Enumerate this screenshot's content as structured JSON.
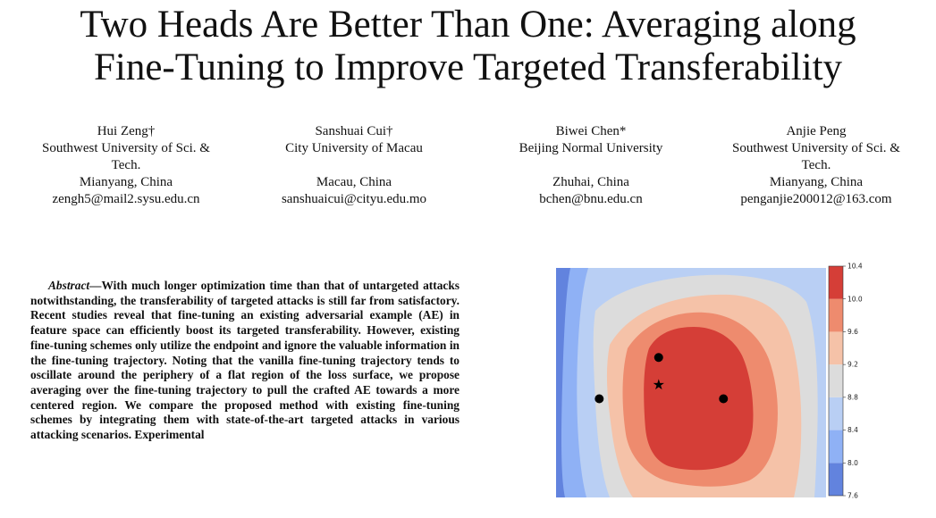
{
  "paper": {
    "title_lines": [
      "Two Heads Are Better Than One: Averaging along",
      "Fine-Tuning to Improve Targeted Transferability"
    ],
    "authors": [
      {
        "name": "Hui Zeng†",
        "affiliation_lines": [
          "Southwest University of Sci. &",
          "Tech."
        ],
        "city": "Mianyang, China",
        "email": "zengh5@mail2.sysu.edu.cn"
      },
      {
        "name": "Sanshuai Cui†",
        "affiliation_lines": [
          "City University of Macau"
        ],
        "city": "Macau, China",
        "email": "sanshuaicui@cityu.edu.mo"
      },
      {
        "name": "Biwei Chen*",
        "affiliation_lines": [
          "Beijing Normal University"
        ],
        "city": "Zhuhai, China",
        "email": "bchen@bnu.edu.cn"
      },
      {
        "name": "Anjie Peng",
        "affiliation_lines": [
          "Southwest University of Sci. &",
          "Tech."
        ],
        "city": "Mianyang, China",
        "email": "penganjie200012@163.com"
      }
    ],
    "abstract": {
      "lead": "Abstract—",
      "text": "With much longer optimization time than that of untargeted attacks notwithstanding, the transferability of targeted attacks is still far from satisfactory. Recent studies reveal that fine-tuning an existing adversarial example (AE) in feature space can efficiently boost its targeted transferability. However, existing fine-tuning schemes only utilize the endpoint and ignore the valuable information in the fine-tuning trajectory. Noting that the vanilla fine-tuning trajectory tends to oscillate around the periphery of a flat region of the loss surface, we propose averaging over the fine-tuning trajectory to pull the crafted AE towards a more centered region. We compare the proposed method with existing fine-tuning schemes by integrating them with state-of-the-art targeted attacks in various attacking scenarios. Experimental"
    }
  },
  "chart_data": {
    "type": "contour",
    "title": "",
    "xlabel": "",
    "ylabel": "",
    "colorbar": {
      "ticks": [
        10.4,
        10.0,
        9.6,
        9.2,
        8.8,
        8.4,
        8.0,
        7.6
      ],
      "tick_labels": [
        "10.4",
        "10.0",
        "9.6",
        "9.2",
        "8.8",
        "8.4",
        "8.0",
        "7.6"
      ],
      "range": [
        7.6,
        10.4
      ],
      "levels": [
        {
          "from": 7.6,
          "to": 8.0,
          "color": "#6283de"
        },
        {
          "from": 8.0,
          "to": 8.4,
          "color": "#8fb1f5"
        },
        {
          "from": 8.4,
          "to": 8.8,
          "color": "#b9cff4"
        },
        {
          "from": 8.8,
          "to": 9.2,
          "color": "#dcdcdc"
        },
        {
          "from": 9.2,
          "to": 9.6,
          "color": "#f5c2a8"
        },
        {
          "from": 9.6,
          "to": 10.0,
          "color": "#ee8b6e"
        },
        {
          "from": 10.0,
          "to": 10.4,
          "color": "#d53e37"
        }
      ]
    },
    "markers": [
      {
        "shape": "circle",
        "x": 0.38,
        "y": 0.61
      },
      {
        "shape": "circle",
        "x": 0.16,
        "y": 0.43
      },
      {
        "shape": "circle",
        "x": 0.62,
        "y": 0.43
      },
      {
        "shape": "star",
        "x": 0.38,
        "y": 0.49
      }
    ]
  }
}
